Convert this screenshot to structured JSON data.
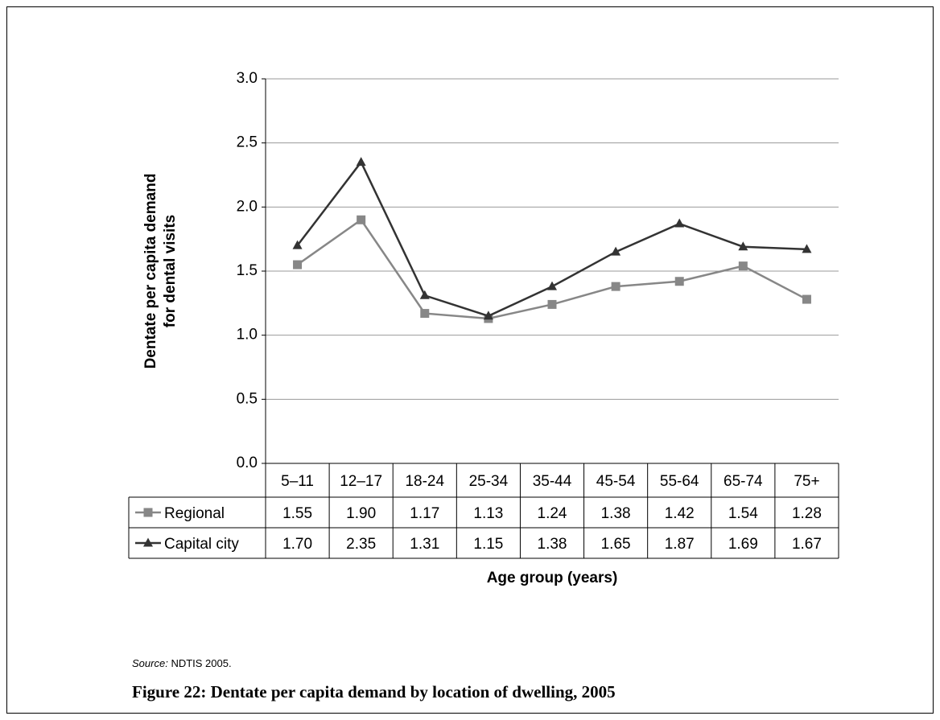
{
  "chart_data": {
    "type": "line",
    "ylabel_lines": [
      "Dentate per capita demand",
      "for dental visits"
    ],
    "xlabel": "Age group (years)",
    "categories": [
      "5–11",
      "12–17",
      "18-24",
      "25-34",
      "35-44",
      "45-54",
      "55-64",
      "65-74",
      "75+"
    ],
    "series": [
      {
        "name": "Regional",
        "color": "#878787",
        "marker": "square",
        "values": [
          1.55,
          1.9,
          1.17,
          1.13,
          1.24,
          1.38,
          1.42,
          1.54,
          1.28
        ],
        "value_labels": [
          "1.55",
          "1.90",
          "1.17",
          "1.13",
          "1.24",
          "1.38",
          "1.42",
          "1.54",
          "1.28"
        ]
      },
      {
        "name": "Capital city",
        "color": "#333333",
        "marker": "triangle",
        "values": [
          1.7,
          2.35,
          1.31,
          1.15,
          1.38,
          1.65,
          1.87,
          1.69,
          1.67
        ],
        "value_labels": [
          "1.70",
          "2.35",
          "1.31",
          "1.15",
          "1.38",
          "1.65",
          "1.87",
          "1.69",
          "1.67"
        ]
      }
    ],
    "ylim": [
      0,
      3
    ],
    "yticks": [
      {
        "value": 0,
        "label": "0.0"
      },
      0.5,
      {
        "value": 1,
        "label": "1.0"
      },
      1.5,
      {
        "value": 2,
        "label": "2.0"
      },
      2.5,
      {
        "value": 3,
        "label": "3.0"
      }
    ],
    "grid": true,
    "data_table": true
  },
  "source_label": "Source:",
  "source": "NDTIS 2005.",
  "caption": "Figure 22: Dentate per capita demand by location of dwelling, 2005"
}
